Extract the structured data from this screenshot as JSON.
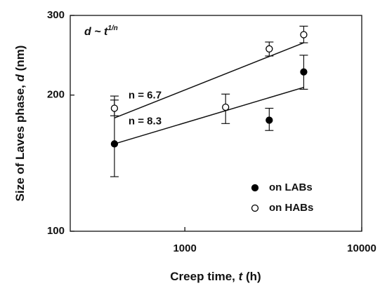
{
  "chart_data": {
    "type": "scatter",
    "xlog": true,
    "ylog": true,
    "xlabel_parts": [
      "Creep time, ",
      "t",
      " (h)"
    ],
    "ylabel_parts": [
      "Size of Laves phase, ",
      "d",
      " (nm)"
    ],
    "formula": "d ~ t",
    "formula_exponent": "1/n",
    "xlim": [
      225,
      10000
    ],
    "xticks": [
      1000,
      10000
    ],
    "ylim": [
      100,
      300
    ],
    "yticks": [
      100,
      200,
      300
    ],
    "legend": "lower right",
    "series": [
      {
        "name": "on LABs",
        "marker": "filled",
        "color": "#000000",
        "x": [
          400,
          1700,
          3000,
          4700
        ],
        "values": [
          156,
          null,
          176,
          225
        ],
        "err_minus": [
          24,
          null,
          9,
          19
        ],
        "err_plus": [
          43,
          null,
          11,
          20
        ]
      },
      {
        "name": "on HABs",
        "marker": "open",
        "color": "#000000",
        "x": [
          400,
          1700,
          3000,
          4700
        ],
        "values": [
          187,
          188,
          253,
          272
        ],
        "err_minus": [
          7,
          15,
          9,
          11
        ],
        "err_plus": [
          8,
          13,
          9,
          12
        ]
      }
    ],
    "fits": [
      {
        "label": "n = 6.7",
        "x": [
          400,
          4700
        ],
        "values": [
          178,
          261
        ]
      },
      {
        "label": "n = 8.3",
        "x": [
          400,
          4700
        ],
        "values": [
          156,
          208
        ]
      }
    ]
  }
}
